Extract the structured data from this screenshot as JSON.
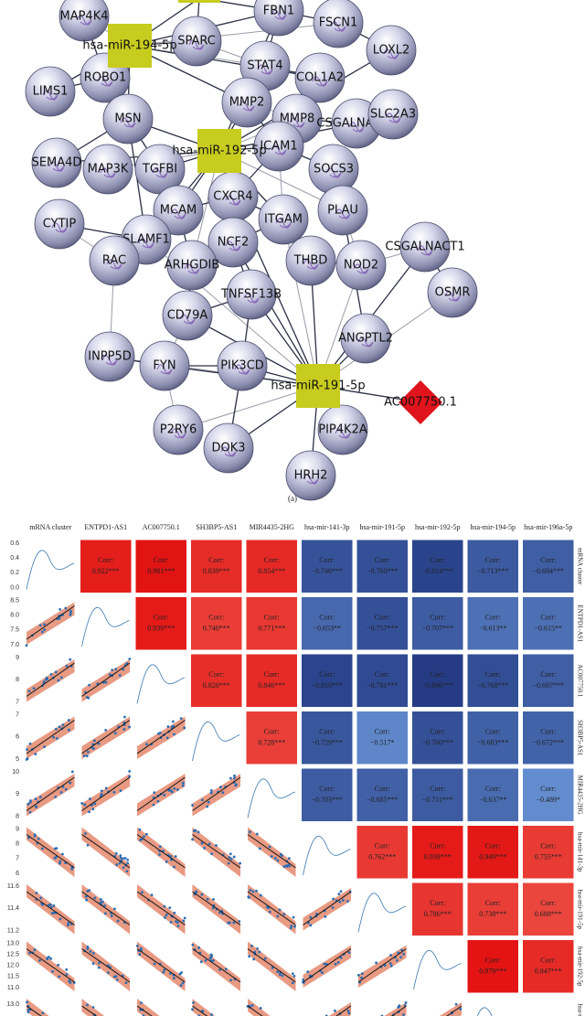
{
  "network": {
    "proteins": [
      "MAP4K4",
      "FBN1",
      "FSCN1",
      "LOXL2",
      "SPARC",
      "ROBO1",
      "STAT4",
      "COL1A2",
      "LIMS1",
      "MMP2",
      "MMP8",
      "CSGALNACT2",
      "SLC2A3",
      "MSN",
      "SEMA4D",
      "MAP3K",
      "TGFBI",
      "ICAM1",
      "SOCS3",
      "CXCR4",
      "CYTIP",
      "MCAM",
      "ITGAM",
      "PLAU",
      "SLAMF1",
      "NCF2",
      "CSGALNACT1",
      "RAC",
      "ARHGDIB",
      "THBD",
      "NOD2",
      "TNFSF13B",
      "OSMR",
      "CD79A",
      "ANGPTL2",
      "INPP5D",
      "FYN",
      "PIK3CD",
      "P2RY6",
      "PIP4K2A",
      "DOK3",
      "HRH2"
    ],
    "mirnas": [
      "hsa-miR-194-5p",
      "hsa-miR-192-5p",
      "hsa-miR-191-5p"
    ],
    "lncrnas": [
      "AC007750.1"
    ]
  },
  "panel_a": "(a)",
  "matrix": {
    "columns": [
      "mRNA cluster",
      "ENTPD1-AS1",
      "AC007750.1",
      "SH3BP5-AS1",
      "MIR4435-2HG",
      "hsa-mir-141-3p",
      "hsa-mir-191-5p",
      "hsa-mir-192-5p",
      "hsa-mir-194-5p",
      "hsa-mir-196a-5p"
    ],
    "corr_label": "Corr:",
    "upper": [
      [
        "0.922***",
        "0.981***",
        "0.839***",
        "0.854***",
        "−0.746***",
        "−0.760***",
        "−0.814***",
        "−0.713***",
        "−0.694***"
      ],
      [
        "0.939***",
        "0.740***",
        "0.771***",
        "−0.653**",
        "−0.757***",
        "−0.707***",
        "−0.613**",
        "−0.615**"
      ],
      [
        "0.820***",
        "0.846***",
        "−0.810***",
        "−0.781***",
        "−0.846***",
        "−0.768***",
        "−0.697***"
      ],
      [
        "0.728***",
        "−0.729***",
        "−0.517*",
        "−0.760***",
        "−0.683***",
        "−0.672***"
      ],
      [
        "−0.703***",
        "−0.685***",
        "−0.711***",
        "−0.637**",
        "−0.489*"
      ],
      [
        "0.762***",
        "0.938***",
        "0.949***",
        "0.755***"
      ],
      [
        "0.786***",
        "0.738***",
        "0.688***"
      ],
      [
        "0.979***",
        "0.847***"
      ]
    ],
    "row_ticks": [
      [
        "0.6",
        "0.4",
        "0.2",
        "0.0"
      ],
      [
        "8.5",
        "8.0",
        "7.5",
        "7.0"
      ],
      [
        "9",
        "8",
        "7"
      ],
      [
        "7",
        "6",
        "5"
      ],
      [
        "10",
        "9",
        "8"
      ],
      [
        "9",
        "8",
        "7",
        "6"
      ],
      [
        "11.6",
        "11.4",
        "11.2"
      ],
      [
        "13.0",
        "12.5",
        "12.0",
        "11.5",
        "11.0"
      ],
      [
        "13.0"
      ]
    ]
  }
}
